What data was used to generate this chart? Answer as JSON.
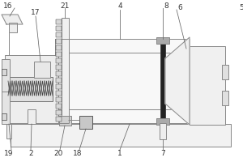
{
  "bg_color": "#ffffff",
  "line_color": "#888888",
  "dark_color": "#444444",
  "label_color": "#333333",
  "label_fontsize": 6.5,
  "figsize": [
    3.0,
    2.0
  ],
  "dpi": 100
}
